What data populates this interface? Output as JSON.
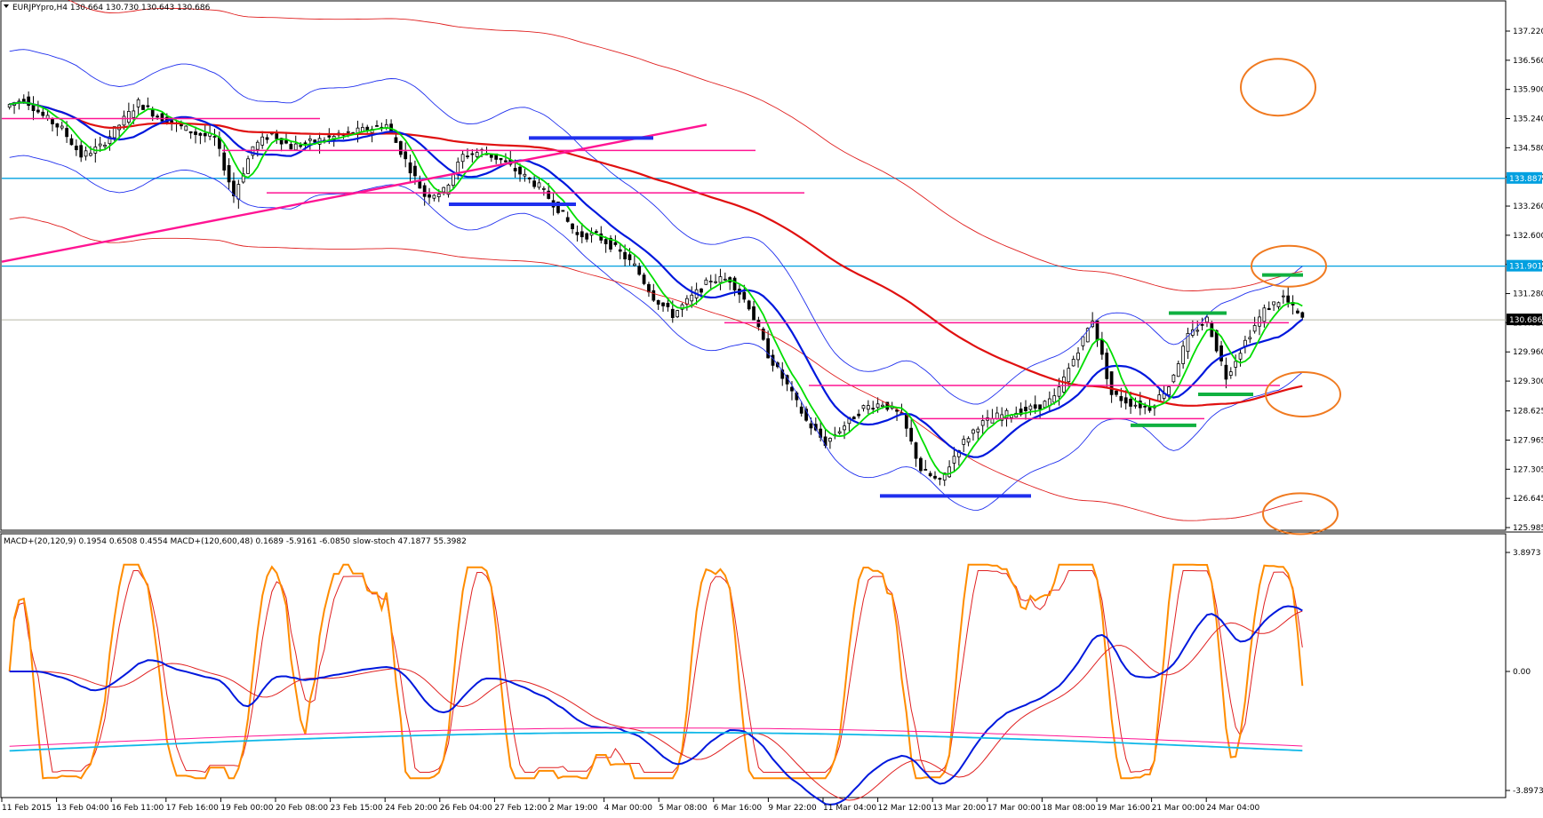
{
  "main_panel": {
    "header": "EURJPYpro,H4  130.664 130.730 130.643 130.686",
    "current_price_label": "130.686",
    "hline_labels": [
      "133.887",
      "131.901"
    ],
    "price_ticks": [
      "137.220",
      "136.560",
      "135.900",
      "135.240",
      "134.580",
      "133.920",
      "133.260",
      "132.600",
      "131.940",
      "131.280",
      "130.620",
      "129.960",
      "129.300",
      "128.625",
      "127.965",
      "127.305",
      "126.645",
      "125.985"
    ]
  },
  "sub_panel": {
    "header": "MACD+(20,120,9) 0.1954 0.6508 0.4554  MACD+(120,600,48) 0.1689 -5.9161 -6.0850  slow-stoch 47.1877 55.3982",
    "ticks": [
      "3.8973",
      "0.00",
      "-3.8973"
    ]
  },
  "time_axis": {
    "labels": [
      "11 Feb 2015",
      "13 Feb 04:00",
      "16 Feb 11:00",
      "17 Feb 16:00",
      "19 Feb 00:00",
      "20 Feb 08:00",
      "23 Feb 15:00",
      "24 Feb 20:00",
      "26 Feb 04:00",
      "27 Feb 12:00",
      "2 Mar 19:00",
      "4 Mar 00:00",
      "5 Mar 08:00",
      "6 Mar 16:00",
      "9 Mar 22:00",
      "11 Mar 04:00",
      "12 Mar 12:00",
      "13 Mar 20:00",
      "17 Mar 00:00",
      "18 Mar 08:00",
      "19 Mar 16:00",
      "21 Mar 00:00",
      "24 Mar 04:00"
    ]
  },
  "colors": {
    "background": "#ffffff",
    "candle": "#000000",
    "ma_green": "#00dd00",
    "ma_blue": "#0018dd",
    "ma_red": "#e01010",
    "band_red": "#e02020",
    "band_blue": "#2030ee",
    "support_magenta": "#ff1493",
    "hline_blue": "#00a0e0",
    "annotation_orange": "#f07a20",
    "macd_blue": "#0018dd",
    "macd_cyan": "#10b8e8",
    "stoch_orange": "#ff8c00"
  },
  "chart_data": [
    {
      "type": "candlestick",
      "symbol": "EURJPYpro",
      "timeframe": "H4",
      "title": "EURJPYpro,H4",
      "ohlc_last": {
        "open": 130.664,
        "high": 130.73,
        "low": 130.643,
        "close": 130.686
      },
      "ylim": [
        125.985,
        137.22
      ],
      "y_ticks": [
        137.22,
        136.56,
        135.9,
        135.24,
        134.58,
        133.92,
        133.26,
        132.6,
        131.94,
        131.28,
        130.62,
        129.96,
        129.3,
        128.625,
        127.965,
        127.305,
        126.645,
        125.985
      ],
      "horizontal_levels": [
        133.887,
        131.901,
        130.686
      ],
      "price_path": [
        135.5,
        135.7,
        135.3,
        135.0,
        134.4,
        134.6,
        135.1,
        135.6,
        135.3,
        135.1,
        134.9,
        134.8,
        133.5,
        134.6,
        134.9,
        134.6,
        134.7,
        134.8,
        134.9,
        135.0,
        135.1,
        134.3,
        133.5,
        133.6,
        134.4,
        134.5,
        134.3,
        134.0,
        133.7,
        133.2,
        132.6,
        132.6,
        132.3,
        131.9,
        131.2,
        130.8,
        131.2,
        131.6,
        131.6,
        131.0,
        129.9,
        129.2,
        128.4,
        127.9,
        128.3,
        128.7,
        128.8,
        128.5,
        127.3,
        127.0,
        127.8,
        128.3,
        128.5,
        128.6,
        128.7,
        128.9,
        129.8,
        130.7,
        129.0,
        128.8,
        128.7,
        129.2,
        130.3,
        130.7,
        129.4,
        130.2,
        130.9,
        131.2,
        130.686
      ]
    },
    {
      "type": "line",
      "title": "MACD+(20,120,9) 0.1954 0.6508 0.4554  MACD+(120,600,48) 0.1689 -5.9161 -6.0850  slow-stoch 47.1877 55.3982",
      "ylim": [
        -3.8973,
        3.8973
      ],
      "y_ticks": [
        3.8973,
        0.0,
        -3.8973
      ],
      "last_values": {
        "macd_20_120_9": [
          0.1954,
          0.6508,
          0.4554
        ],
        "macd_120_600_48": [
          0.1689,
          -5.9161,
          -6.085
        ],
        "slow_stoch": [
          47.1877,
          55.3982
        ]
      }
    }
  ]
}
